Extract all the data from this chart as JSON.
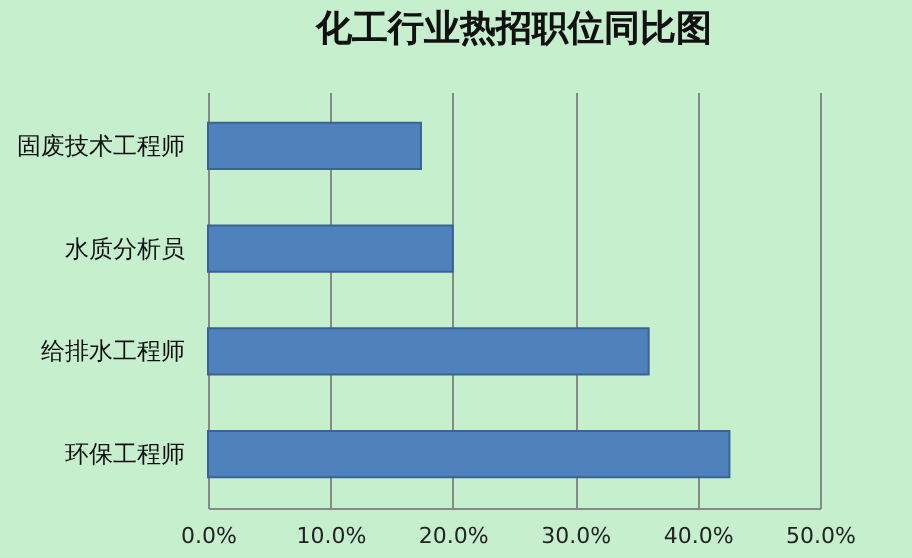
{
  "chart_data": {
    "type": "bar",
    "orientation": "horizontal",
    "title": "化工行业热招职位同比图",
    "categories": [
      "固废技术工程师",
      "水质分析员",
      "给排水工程师",
      "环保工程师"
    ],
    "values": [
      17.4,
      20.0,
      36.0,
      42.6
    ],
    "color": "#4f81bd",
    "xlim": [
      0,
      50
    ],
    "xticks": [
      {
        "value": 0,
        "label": "0.0%"
      },
      {
        "value": 10,
        "label": "10.0%"
      },
      {
        "value": 20,
        "label": "20.0%"
      },
      {
        "value": 30,
        "label": "30.0%"
      },
      {
        "value": 40,
        "label": "40.0%"
      },
      {
        "value": 50,
        "label": "50.0%"
      }
    ],
    "grid": "x"
  }
}
